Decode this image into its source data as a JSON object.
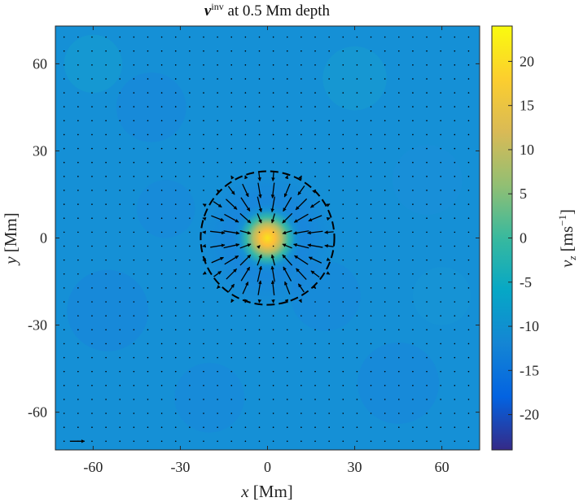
{
  "chart_data": {
    "type": "heatmap",
    "title_symbol": "v",
    "title_superscript": "inv",
    "title_rest": " at 0.5 Mm depth",
    "xlabel_var": "x",
    "xlabel_unit": " [Mm]",
    "ylabel_var": "y",
    "ylabel_unit": " [Mm]",
    "xlim": [
      -73,
      73
    ],
    "ylim": [
      -73,
      73
    ],
    "xticks": [
      -60,
      -30,
      0,
      30,
      60
    ],
    "xtick_labels": [
      "-60",
      "-30",
      "0",
      "30",
      "60"
    ],
    "yticks": [
      60,
      30,
      0,
      -30,
      -60
    ],
    "ytick_labels": [
      "60",
      "30",
      "0",
      "-30",
      "-60"
    ],
    "colorbar": {
      "range": [
        -24,
        24
      ],
      "ticks": [
        20,
        15,
        10,
        5,
        0,
        -5,
        -10,
        -15,
        -20
      ],
      "tick_labels": [
        "20",
        "15",
        "10",
        "5",
        "0",
        "-5",
        "-10",
        "-15",
        "-20"
      ],
      "label_var": "v",
      "label_sub": "z",
      "label_unit_open": " [ms",
      "label_unit_exp": "−1",
      "label_unit_close": "]",
      "colormap": "parula"
    },
    "field": {
      "background_vz": -7,
      "center": [
        0,
        0
      ],
      "peak_vz": 23,
      "peak_radius_Mm": 4.5,
      "moat_vz": -11,
      "moat_radius_Mm": 15
    },
    "annotation_circle": {
      "center": [
        0,
        0
      ],
      "radius_Mm": 23,
      "style": "dashed"
    },
    "quiver": {
      "grid_spacing_Mm": 4.8,
      "pattern": "radial outflow (arrows point inward inside the dashed circle, short outward arrows just outside)",
      "reference_arrow_position": [
        -68,
        -70
      ]
    }
  }
}
